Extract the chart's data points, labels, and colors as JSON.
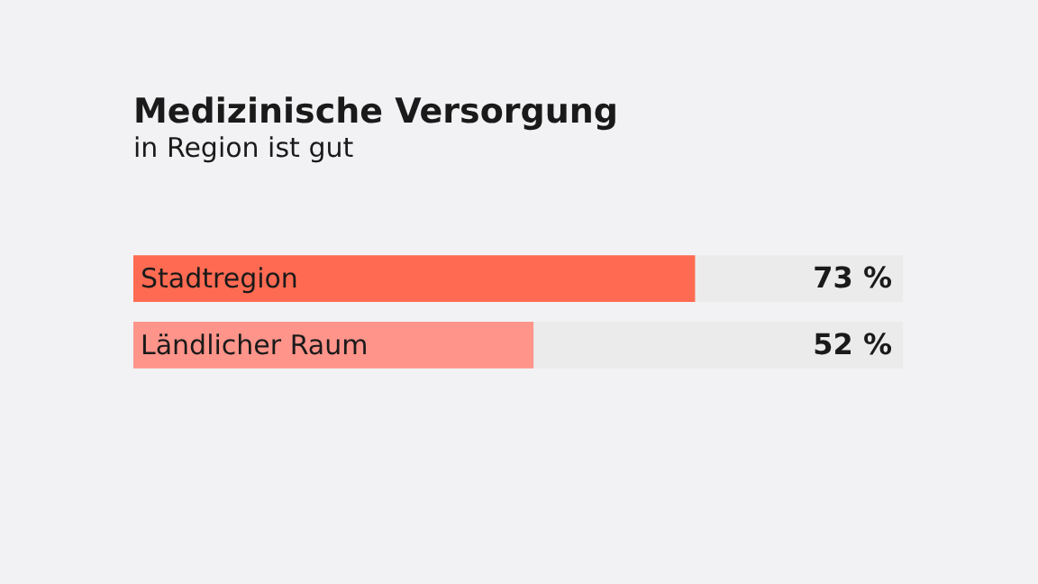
{
  "chart_data": {
    "type": "bar",
    "orientation": "horizontal",
    "title": "Medizinische Versorgung",
    "subtitle": "in Region ist gut",
    "categories": [
      "Stadtregion",
      "Ländlicher Raum"
    ],
    "values": [
      73,
      52
    ],
    "colors": [
      "#ff6b52",
      "#ff948a"
    ],
    "value_labels": [
      "73 %",
      "52 %"
    ],
    "xlim": [
      0,
      100
    ],
    "tick_labels": false
  }
}
